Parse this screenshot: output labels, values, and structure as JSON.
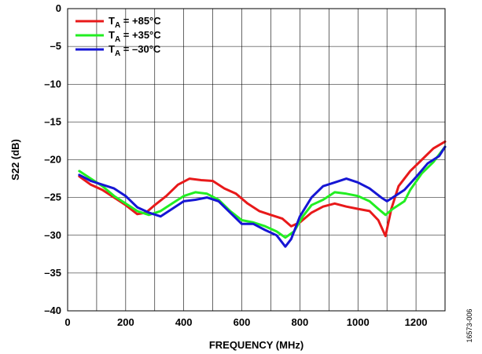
{
  "chart_data": {
    "type": "line",
    "title": "",
    "xlabel": "FREQUENCY (MHz)",
    "ylabel": "S22 (dB)",
    "xlim": [
      0,
      1300
    ],
    "ylim": [
      -40,
      0
    ],
    "xticks": [
      0,
      200,
      400,
      600,
      800,
      1000,
      1200
    ],
    "yticks": [
      0,
      -5,
      -10,
      -15,
      -20,
      -25,
      -30,
      -35,
      -40
    ],
    "xtick_labels": [
      "0",
      "200",
      "400",
      "600",
      "800",
      "1000",
      "1200"
    ],
    "ytick_labels": [
      "0",
      "–5",
      "–10",
      "–15",
      "–20",
      "–25",
      "–30",
      "–35",
      "–40"
    ],
    "grid": true,
    "legend_position": "top-left",
    "series": [
      {
        "name_main": "T",
        "name_sub": "A",
        "name_rest": " = +85°C",
        "color": "#e8191a",
        "points": [
          [
            40,
            -22.2
          ],
          [
            80,
            -23.3
          ],
          [
            120,
            -24.0
          ],
          [
            160,
            -25.0
          ],
          [
            200,
            -26.0
          ],
          [
            240,
            -27.2
          ],
          [
            270,
            -27.0
          ],
          [
            300,
            -26.0
          ],
          [
            340,
            -24.8
          ],
          [
            380,
            -23.3
          ],
          [
            420,
            -22.5
          ],
          [
            460,
            -22.7
          ],
          [
            500,
            -22.8
          ],
          [
            540,
            -23.8
          ],
          [
            580,
            -24.5
          ],
          [
            620,
            -25.8
          ],
          [
            660,
            -26.8
          ],
          [
            700,
            -27.3
          ],
          [
            740,
            -27.8
          ],
          [
            770,
            -28.8
          ],
          [
            800,
            -28.3
          ],
          [
            840,
            -27.0
          ],
          [
            880,
            -26.2
          ],
          [
            920,
            -25.8
          ],
          [
            960,
            -26.2
          ],
          [
            1000,
            -26.5
          ],
          [
            1040,
            -26.8
          ],
          [
            1070,
            -28.0
          ],
          [
            1095,
            -30.1
          ],
          [
            1115,
            -26.5
          ],
          [
            1140,
            -23.5
          ],
          [
            1180,
            -21.5
          ],
          [
            1220,
            -20.0
          ],
          [
            1260,
            -18.5
          ],
          [
            1300,
            -17.6
          ]
        ]
      },
      {
        "name_main": "T",
        "name_sub": "A",
        "name_rest": " = +35°C",
        "color": "#22ee22",
        "points": [
          [
            40,
            -21.5
          ],
          [
            80,
            -22.5
          ],
          [
            120,
            -23.5
          ],
          [
            160,
            -24.8
          ],
          [
            200,
            -25.8
          ],
          [
            240,
            -26.8
          ],
          [
            280,
            -27.3
          ],
          [
            320,
            -26.8
          ],
          [
            360,
            -25.8
          ],
          [
            400,
            -24.8
          ],
          [
            440,
            -24.3
          ],
          [
            480,
            -24.5
          ],
          [
            520,
            -25.3
          ],
          [
            560,
            -26.8
          ],
          [
            600,
            -28.0
          ],
          [
            640,
            -28.3
          ],
          [
            680,
            -28.8
          ],
          [
            720,
            -29.5
          ],
          [
            750,
            -30.3
          ],
          [
            780,
            -29.5
          ],
          [
            810,
            -27.5
          ],
          [
            840,
            -26.0
          ],
          [
            880,
            -25.3
          ],
          [
            920,
            -24.3
          ],
          [
            960,
            -24.5
          ],
          [
            1000,
            -24.8
          ],
          [
            1040,
            -25.5
          ],
          [
            1070,
            -26.5
          ],
          [
            1095,
            -27.3
          ],
          [
            1120,
            -26.5
          ],
          [
            1160,
            -25.5
          ],
          [
            1180,
            -24.0
          ],
          [
            1220,
            -21.8
          ],
          [
            1260,
            -20.3
          ],
          [
            1300,
            -18.3
          ]
        ]
      },
      {
        "name_main": "T",
        "name_sub": "A",
        "name_rest": " = –30°C",
        "color": "#1616d4",
        "points": [
          [
            40,
            -22.0
          ],
          [
            80,
            -22.8
          ],
          [
            120,
            -23.3
          ],
          [
            160,
            -23.8
          ],
          [
            200,
            -24.8
          ],
          [
            240,
            -26.3
          ],
          [
            280,
            -27.0
          ],
          [
            320,
            -27.5
          ],
          [
            360,
            -26.5
          ],
          [
            400,
            -25.5
          ],
          [
            440,
            -25.3
          ],
          [
            480,
            -25.0
          ],
          [
            520,
            -25.5
          ],
          [
            560,
            -27.0
          ],
          [
            600,
            -28.5
          ],
          [
            640,
            -28.5
          ],
          [
            680,
            -29.3
          ],
          [
            720,
            -30.0
          ],
          [
            750,
            -31.5
          ],
          [
            770,
            -30.5
          ],
          [
            800,
            -27.5
          ],
          [
            840,
            -25.0
          ],
          [
            880,
            -23.5
          ],
          [
            920,
            -23.0
          ],
          [
            960,
            -22.5
          ],
          [
            1000,
            -23.0
          ],
          [
            1040,
            -23.8
          ],
          [
            1080,
            -25.0
          ],
          [
            1100,
            -25.5
          ],
          [
            1120,
            -25.0
          ],
          [
            1160,
            -24.0
          ],
          [
            1200,
            -22.3
          ],
          [
            1240,
            -20.5
          ],
          [
            1280,
            -19.5
          ],
          [
            1300,
            -18.3
          ]
        ]
      }
    ]
  },
  "figure_id": "16573-006"
}
